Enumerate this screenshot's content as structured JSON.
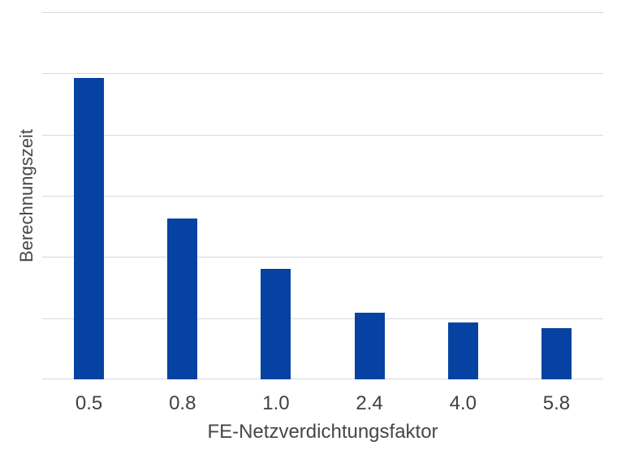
{
  "chart_data": {
    "type": "bar",
    "title": "",
    "xlabel": "FE-Netzverdichtungsfaktor",
    "ylabel": "Berechnungszeit",
    "categories": [
      "0.5",
      "0.8",
      "1.0",
      "2.4",
      "4.0",
      "5.8"
    ],
    "values": [
      4.92,
      2.63,
      1.81,
      1.09,
      0.93,
      0.84
    ],
    "ylim": [
      0,
      6
    ],
    "y_grid_step": 1,
    "y_tick_labels_shown": false,
    "grid": true,
    "legend": false
  },
  "colors": {
    "bar": "#0542a2",
    "gridline": "#d9d9d9",
    "tick_label": "#404040",
    "axis_title": "#474747",
    "background": "#ffffff"
  }
}
